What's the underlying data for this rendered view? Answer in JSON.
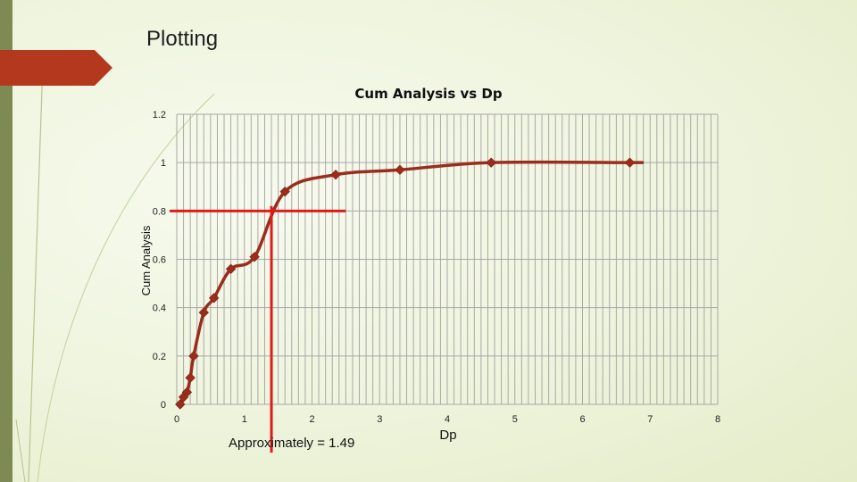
{
  "slide": {
    "title": "Plotting"
  },
  "colors": {
    "series": "#9b2d1c",
    "marker_line": "#8b2615",
    "reference_lines": "#e01b1b",
    "accent_tab": "#b3381e",
    "left_bar": "#7d8a54",
    "grid": "#a8a8a8"
  },
  "chart_data": {
    "type": "line",
    "title": "Cum Analysis vs Dp",
    "xlabel": "Dp",
    "ylabel": "Cum Analysis",
    "xlim": [
      0,
      8
    ],
    "ylim": [
      0,
      1.2
    ],
    "x_ticks": [
      "0",
      "1",
      "2",
      "3",
      "4",
      "5",
      "6",
      "7",
      "8"
    ],
    "y_ticks": [
      "0",
      "0.2",
      "0.4",
      "0.6",
      "0.8",
      "1",
      "1.2"
    ],
    "grid": true,
    "x_minor_gridlines_per_unit": 10,
    "marker": "diamond",
    "series": [
      {
        "points": [
          [
            0.05,
            0.0
          ],
          [
            0.1,
            0.03
          ],
          [
            0.15,
            0.05
          ],
          [
            0.2,
            0.11
          ],
          [
            0.25,
            0.2
          ],
          [
            0.4,
            0.38
          ],
          [
            0.55,
            0.44
          ],
          [
            0.8,
            0.56
          ],
          [
            1.15,
            0.61
          ],
          [
            1.6,
            0.88
          ],
          [
            2.35,
            0.95
          ],
          [
            3.3,
            0.97
          ],
          [
            4.65,
            1.0
          ],
          [
            6.7,
            1.0
          ]
        ]
      }
    ],
    "reference_lines": [
      {
        "type": "horizontal",
        "y": 0.8,
        "x_from": 0,
        "x_to": 2.5
      },
      {
        "type": "vertical",
        "x": 1.4,
        "y_from": -0.2,
        "y_to": 0.82
      }
    ],
    "annotation": "Approximately = 1.49"
  }
}
